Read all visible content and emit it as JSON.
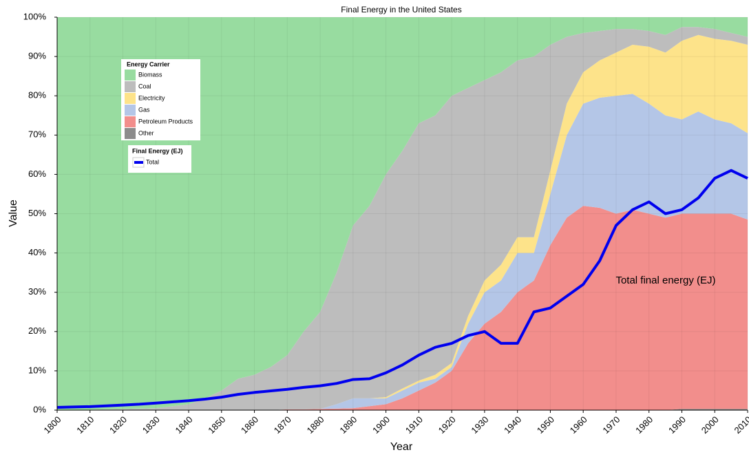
{
  "chart_data": {
    "type": "stacked_area_100",
    "title": "Final Energy in the United States",
    "x_label": "Year",
    "y_label": "Value",
    "annotation": "Total final energy (EJ)",
    "legend_title": "Energy Carrier",
    "line_legend_title": "Final Energy (EJ)",
    "x": [
      1800,
      1805,
      1810,
      1815,
      1820,
      1825,
      1830,
      1835,
      1840,
      1845,
      1850,
      1855,
      1860,
      1865,
      1870,
      1875,
      1880,
      1885,
      1890,
      1895,
      1900,
      1905,
      1910,
      1915,
      1920,
      1925,
      1930,
      1935,
      1940,
      1945,
      1950,
      1955,
      1960,
      1965,
      1970,
      1975,
      1980,
      1985,
      1990,
      1995,
      2000,
      2005,
      2010
    ],
    "xlim": [
      1800,
      2010
    ],
    "xticks": [
      1800,
      1810,
      1820,
      1830,
      1840,
      1850,
      1860,
      1870,
      1880,
      1890,
      1900,
      1910,
      1920,
      1930,
      1940,
      1950,
      1960,
      1970,
      1980,
      1990,
      2000,
      2010
    ],
    "ylim": [
      0,
      100
    ],
    "yticks": [
      {
        "value": 0,
        "label": "0%"
      },
      {
        "value": 10,
        "label": "10%"
      },
      {
        "value": 20,
        "label": "20%"
      },
      {
        "value": 30,
        "label": "30%"
      },
      {
        "value": 40,
        "label": "40%"
      },
      {
        "value": 50,
        "label": "50%"
      },
      {
        "value": 60,
        "label": "60%"
      },
      {
        "value": 70,
        "label": "70%"
      },
      {
        "value": 80,
        "label": "80%"
      },
      {
        "value": 90,
        "label": "90%"
      },
      {
        "value": 100,
        "label": "100%"
      }
    ],
    "grid": true,
    "series": [
      {
        "name": "Other",
        "color": "#8c8c8c",
        "values": [
          0,
          0,
          0,
          0,
          0,
          0,
          0,
          0,
          0,
          0,
          0,
          0,
          0,
          0,
          0,
          0,
          0,
          0,
          0,
          0,
          0,
          0,
          0,
          0,
          0,
          0,
          0,
          0,
          0,
          0,
          0,
          0,
          0,
          0,
          0,
          0,
          0,
          0,
          0.3,
          0.3,
          0.3,
          0.3,
          0.3
        ]
      },
      {
        "name": "Petroleum Products",
        "color": "#f28e8c",
        "values": [
          0,
          0,
          0,
          0,
          0,
          0,
          0,
          0,
          0,
          0,
          0,
          0,
          0,
          0,
          0.2,
          0.2,
          0.3,
          0.4,
          0.5,
          1,
          1.5,
          3,
          5,
          7,
          10,
          17,
          22,
          25,
          30,
          33,
          42,
          49,
          52,
          51.5,
          50,
          51,
          50,
          49,
          49.7,
          49.7,
          49.7,
          49.7,
          48.2
        ]
      },
      {
        "name": "Gas",
        "color": "#b4c6e7",
        "values": [
          0,
          0,
          0,
          0,
          0,
          0,
          0,
          0,
          0,
          0,
          0,
          0,
          0,
          0,
          0,
          0,
          0,
          1.1,
          2.5,
          2,
          1.5,
          2,
          2,
          1,
          1,
          5,
          8,
          8,
          10,
          7,
          13,
          21,
          26,
          28,
          30,
          29.5,
          28,
          26,
          24,
          26,
          24,
          23,
          22
        ]
      },
      {
        "name": "Electricity",
        "color": "#fde38a",
        "values": [
          0,
          0,
          0,
          0,
          0,
          0,
          0,
          0,
          0,
          0,
          0,
          0,
          0,
          0,
          0,
          0,
          0,
          0,
          0,
          0,
          0.3,
          0.5,
          0.5,
          1,
          1,
          2,
          3,
          4,
          4,
          4,
          6,
          8,
          8,
          9.5,
          11,
          12.5,
          14.5,
          16,
          20,
          19.5,
          20.5,
          21,
          22.5
        ]
      },
      {
        "name": "Coal",
        "color": "#bdbdbd",
        "values": [
          0,
          0,
          0.1,
          0.2,
          0.3,
          0.4,
          0.5,
          1,
          1.5,
          3,
          5,
          8,
          9,
          11,
          13.8,
          19.8,
          24.7,
          33.5,
          44,
          49,
          56.7,
          60.5,
          65.5,
          66,
          68,
          58,
          51,
          49,
          45,
          46,
          32,
          17,
          10,
          7.5,
          6,
          4,
          4,
          4.5,
          3.5,
          2,
          2.5,
          2,
          2
        ]
      },
      {
        "name": "Biomass",
        "color": "#98dca0",
        "values": [
          100,
          100,
          99.9,
          99.8,
          99.7,
          99.6,
          99.5,
          99,
          98.5,
          97,
          95,
          92,
          91,
          89,
          86,
          80,
          75,
          65,
          53,
          48,
          40,
          34,
          27,
          25,
          20,
          18,
          16,
          14,
          11,
          10,
          7,
          5,
          4,
          3.5,
          3,
          3,
          3.5,
          4.5,
          2.5,
          2.5,
          3,
          4,
          5
        ]
      }
    ],
    "line": {
      "name": "Total",
      "color": "#0000ee",
      "values": [
        0.7,
        0.8,
        0.9,
        1.1,
        1.3,
        1.5,
        1.8,
        2.1,
        2.4,
        2.8,
        3.3,
        4,
        4.5,
        4.9,
        5.3,
        5.8,
        6.2,
        6.8,
        7.8,
        8,
        9.5,
        11.5,
        14,
        16,
        17,
        19,
        20,
        17,
        17,
        25,
        26,
        29,
        32,
        38,
        47,
        51,
        53,
        50,
        51,
        54,
        59,
        61,
        59
      ]
    }
  }
}
